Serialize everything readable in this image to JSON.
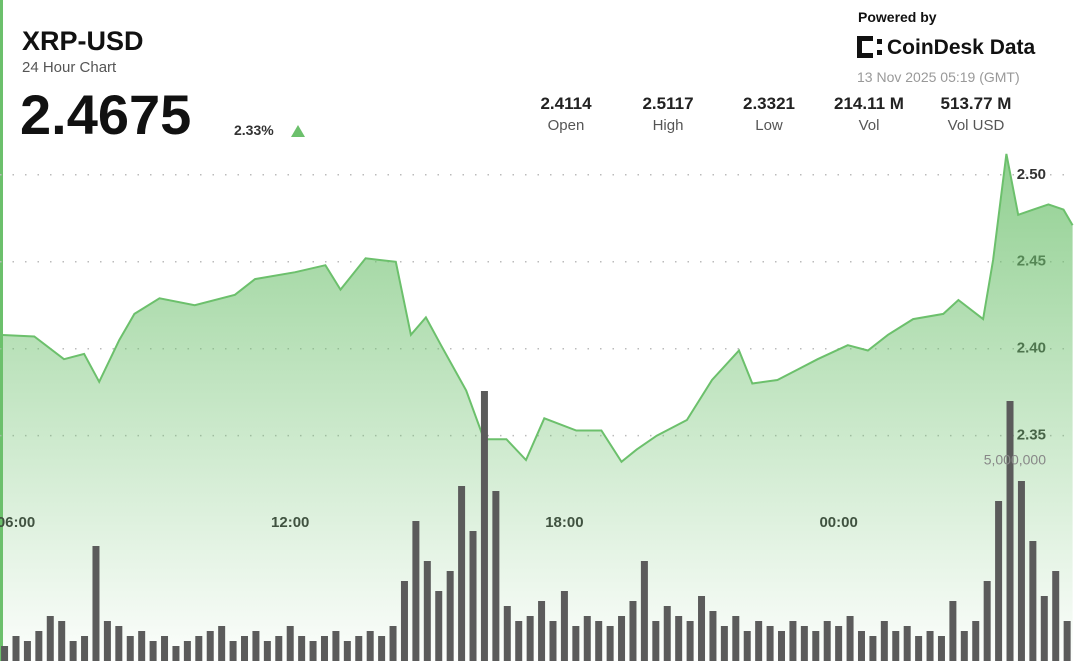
{
  "header": {
    "title": "XRP-USD",
    "subtitle": "24 Hour Chart",
    "price": "2.4675",
    "change": "2.33%",
    "powered_by": "Powered by",
    "brand": "CoinDesk Data",
    "timestamp": "13 Nov 2025 05:19 (GMT)",
    "stats": [
      {
        "value": "2.4114",
        "label": "Open"
      },
      {
        "value": "2.5117",
        "label": "High"
      },
      {
        "value": "2.3321",
        "label": "Low"
      },
      {
        "value": "214.11 M",
        "label": "Vol"
      },
      {
        "value": "513.77 M",
        "label": "Vol USD"
      }
    ]
  },
  "chart_data": [
    {
      "type": "line",
      "color": "#6cc06c",
      "x": [
        5.63,
        6.4,
        7.05,
        7.49,
        7.82,
        8.26,
        8.59,
        9.14,
        9.91,
        10.79,
        11.23,
        12.11,
        12.77,
        13.1,
        13.65,
        14.31,
        14.64,
        14.97,
        15.3,
        15.85,
        16.24,
        16.73,
        17.16,
        17.56,
        18.26,
        18.81,
        19.25,
        19.58,
        20.02,
        20.68,
        21.23,
        21.82,
        22.11,
        22.66,
        23.1,
        23.54,
        24.2,
        24.64,
        25.08,
        25.63,
        26.29,
        26.62,
        27.16,
        27.38,
        27.67,
        27.93,
        28.26,
        28.59,
        28.92,
        29.12
      ],
      "values": [
        2.408,
        2.407,
        2.394,
        2.397,
        2.381,
        2.405,
        2.42,
        2.429,
        2.425,
        2.431,
        2.44,
        2.444,
        2.448,
        2.434,
        2.452,
        2.45,
        2.408,
        2.418,
        2.402,
        2.376,
        2.348,
        2.348,
        2.336,
        2.36,
        2.353,
        2.353,
        2.335,
        2.342,
        2.35,
        2.359,
        2.382,
        2.399,
        2.38,
        2.382,
        2.388,
        2.394,
        2.402,
        2.399,
        2.408,
        2.417,
        2.42,
        2.428,
        2.417,
        2.451,
        2.512,
        2.477,
        2.48,
        2.483,
        2.48,
        2.471
      ],
      "xlim": [
        5.65,
        29.15
      ],
      "xticks": [
        {
          "value": 6,
          "label": "06:00"
        },
        {
          "value": 12,
          "label": "12:00"
        },
        {
          "value": 18,
          "label": "18:00"
        },
        {
          "value": 24,
          "label": "00:00"
        }
      ],
      "ylim": [
        2.25,
        2.51
      ],
      "yticks": [
        2.35,
        {
          "value": 2.4,
          "label": "2.40"
        },
        2.45,
        {
          "value": 2.5,
          "label": "2.50"
        }
      ],
      "grid": true
    },
    {
      "type": "bar",
      "color": "#5b5b5b",
      "x": [
        5.75,
        6.0,
        6.25,
        6.5,
        6.75,
        7.0,
        7.25,
        7.5,
        7.75,
        8.0,
        8.25,
        8.5,
        8.75,
        9.0,
        9.25,
        9.5,
        9.75,
        10.0,
        10.25,
        10.5,
        10.75,
        11.0,
        11.25,
        11.5,
        11.75,
        12.0,
        12.25,
        12.5,
        12.75,
        13.0,
        13.25,
        13.5,
        13.75,
        14.0,
        14.25,
        14.5,
        14.75,
        15.0,
        15.25,
        15.5,
        15.75,
        16.0,
        16.25,
        16.5,
        16.75,
        17.0,
        17.25,
        17.5,
        17.75,
        18.0,
        18.25,
        18.5,
        18.75,
        19.0,
        19.25,
        19.5,
        19.75,
        20.0,
        20.25,
        20.5,
        20.75,
        21.0,
        21.25,
        21.5,
        21.75,
        22.0,
        22.25,
        22.5,
        22.75,
        23.0,
        23.25,
        23.5,
        23.75,
        24.0,
        24.25,
        24.5,
        24.75,
        25.0,
        25.25,
        25.5,
        25.75,
        26.0,
        26.25,
        26.5,
        26.75,
        27.0,
        27.25,
        27.5,
        27.75,
        28.0,
        28.25,
        28.5,
        28.75,
        29.0
      ],
      "values": [
        375000,
        625000,
        500000,
        750000,
        1125000,
        1000000,
        500000,
        625000,
        2875000,
        1000000,
        875000,
        625000,
        750000,
        500000,
        625000,
        375000,
        500000,
        625000,
        750000,
        875000,
        500000,
        625000,
        750000,
        500000,
        625000,
        875000,
        625000,
        500000,
        625000,
        750000,
        500000,
        625000,
        750000,
        625000,
        875000,
        2000000,
        3500000,
        2500000,
        1750000,
        2250000,
        4375000,
        3250000,
        6750000,
        4250000,
        1375000,
        1000000,
        1125000,
        1500000,
        1000000,
        1750000,
        875000,
        1125000,
        1000000,
        875000,
        1125000,
        1500000,
        2500000,
        1000000,
        1375000,
        1125000,
        1000000,
        1625000,
        1250000,
        875000,
        1125000,
        750000,
        1000000,
        875000,
        750000,
        1000000,
        875000,
        750000,
        1000000,
        875000,
        1125000,
        750000,
        625000,
        1000000,
        750000,
        875000,
        625000,
        750000,
        625000,
        1500000,
        750000,
        1000000,
        2000000,
        4000000,
        6500000,
        4500000,
        3000000,
        1625000,
        2250000,
        1000000
      ],
      "ylim": [
        0,
        13000000
      ],
      "yticks": [
        {
          "value": 5000000,
          "label": "5,000,000"
        }
      ]
    }
  ]
}
